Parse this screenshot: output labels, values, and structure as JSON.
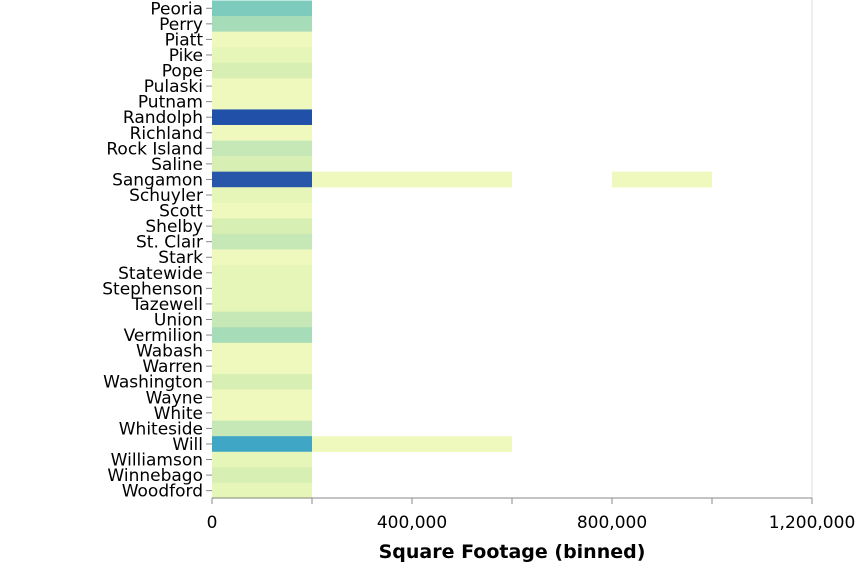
{
  "chart_data": {
    "type": "heatmap",
    "title": "",
    "xlabel": "Square Footage (binned)",
    "ylabel": "",
    "x_bin_width": 200000,
    "xlim": [
      0,
      1200000
    ],
    "x_ticks": [
      {
        "value": 0,
        "label": "0"
      },
      {
        "value": 400000,
        "label": "400,000"
      },
      {
        "value": 800000,
        "label": "800,000"
      },
      {
        "value": 1200000,
        "label": "1,200,000"
      }
    ],
    "colors": {
      "level_0": "#eff9be",
      "level_1": "#e6f5b8",
      "level_2": "#d8efb4",
      "level_3": "#c5e8b6",
      "level_4": "#a6dcb7",
      "level_5": "#7ccbbc",
      "level_6": "#3fa6c6",
      "level_7": "#2856a8",
      "level_8": "#2050a8"
    },
    "categories": [
      "Peoria",
      "Perry",
      "Piatt",
      "Pike",
      "Pope",
      "Pulaski",
      "Putnam",
      "Randolph",
      "Richland",
      "Rock Island",
      "Saline",
      "Sangamon",
      "Schuyler",
      "Scott",
      "Shelby",
      "St. Clair",
      "Stark",
      "Statewide",
      "Stephenson",
      "Tazewell",
      "Union",
      "Vermilion",
      "Wabash",
      "Warren",
      "Washington",
      "Wayne",
      "White",
      "Whiteside",
      "Will",
      "Williamson",
      "Winnebago",
      "Woodford"
    ],
    "cells": [
      {
        "category": "Peoria",
        "bin_start": 0,
        "level": 5
      },
      {
        "category": "Perry",
        "bin_start": 0,
        "level": 4
      },
      {
        "category": "Piatt",
        "bin_start": 0,
        "level": 0
      },
      {
        "category": "Pike",
        "bin_start": 0,
        "level": 1
      },
      {
        "category": "Pope",
        "bin_start": 0,
        "level": 2
      },
      {
        "category": "Pulaski",
        "bin_start": 0,
        "level": 0
      },
      {
        "category": "Putnam",
        "bin_start": 0,
        "level": 0
      },
      {
        "category": "Randolph",
        "bin_start": 0,
        "level": 8
      },
      {
        "category": "Richland",
        "bin_start": 0,
        "level": 0
      },
      {
        "category": "Rock Island",
        "bin_start": 0,
        "level": 3
      },
      {
        "category": "Saline",
        "bin_start": 0,
        "level": 2
      },
      {
        "category": "Sangamon",
        "bin_start": 0,
        "level": 7
      },
      {
        "category": "Sangamon",
        "bin_start": 200000,
        "level": 0
      },
      {
        "category": "Sangamon",
        "bin_start": 400000,
        "level": 0
      },
      {
        "category": "Sangamon",
        "bin_start": 800000,
        "level": 0
      },
      {
        "category": "Schuyler",
        "bin_start": 0,
        "level": 1
      },
      {
        "category": "Scott",
        "bin_start": 0,
        "level": 0
      },
      {
        "category": "Shelby",
        "bin_start": 0,
        "level": 2
      },
      {
        "category": "St. Clair",
        "bin_start": 0,
        "level": 3
      },
      {
        "category": "Stark",
        "bin_start": 0,
        "level": 0
      },
      {
        "category": "Statewide",
        "bin_start": 0,
        "level": 1
      },
      {
        "category": "Stephenson",
        "bin_start": 0,
        "level": 1
      },
      {
        "category": "Tazewell",
        "bin_start": 0,
        "level": 1
      },
      {
        "category": "Union",
        "bin_start": 0,
        "level": 3
      },
      {
        "category": "Vermilion",
        "bin_start": 0,
        "level": 4
      },
      {
        "category": "Wabash",
        "bin_start": 0,
        "level": 0
      },
      {
        "category": "Warren",
        "bin_start": 0,
        "level": 0
      },
      {
        "category": "Washington",
        "bin_start": 0,
        "level": 2
      },
      {
        "category": "Wayne",
        "bin_start": 0,
        "level": 0
      },
      {
        "category": "White",
        "bin_start": 0,
        "level": 0
      },
      {
        "category": "Whiteside",
        "bin_start": 0,
        "level": 3
      },
      {
        "category": "Will",
        "bin_start": 0,
        "level": 6
      },
      {
        "category": "Will",
        "bin_start": 200000,
        "level": 0
      },
      {
        "category": "Will",
        "bin_start": 400000,
        "level": 0
      },
      {
        "category": "Williamson",
        "bin_start": 0,
        "level": 1
      },
      {
        "category": "Winnebago",
        "bin_start": 0,
        "level": 2
      },
      {
        "category": "Woodford",
        "bin_start": 0,
        "level": 1
      }
    ]
  }
}
